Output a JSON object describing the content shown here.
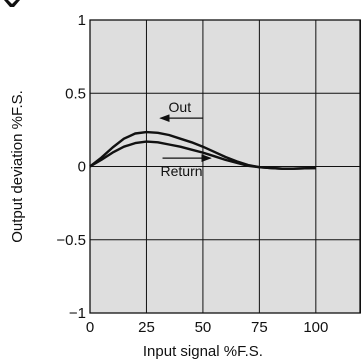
{
  "chart_data": {
    "type": "line",
    "xlabel": "Input signal  %F.S.",
    "ylabel": "Output deviation  %F.S.",
    "xlim": [
      0,
      120
    ],
    "ylim": [
      -1,
      1
    ],
    "grid": true,
    "x_ticks": [
      0,
      25,
      50,
      75,
      100
    ],
    "x_tick_labels": [
      "0",
      "25",
      "50",
      "75",
      "100"
    ],
    "y_ticks": [
      -1,
      -0.5,
      0,
      0.5,
      1
    ],
    "y_tick_labels": [
      "−1",
      "−0.5",
      "0",
      "0.5",
      "1"
    ],
    "series": [
      {
        "name": "Out",
        "x": [
          0,
          5,
          10,
          15,
          20,
          25,
          30,
          35,
          40,
          45,
          50,
          55,
          60,
          65,
          70,
          75,
          80,
          85,
          90,
          95,
          100
        ],
        "y": [
          0,
          0.06,
          0.13,
          0.19,
          0.225,
          0.235,
          0.23,
          0.215,
          0.19,
          0.165,
          0.135,
          0.1,
          0.065,
          0.035,
          0.01,
          -0.005,
          -0.01,
          -0.015,
          -0.015,
          -0.012,
          -0.01
        ]
      },
      {
        "name": "Return",
        "x": [
          0,
          5,
          10,
          15,
          20,
          25,
          30,
          35,
          40,
          45,
          50,
          55,
          60,
          65,
          70,
          75,
          80,
          85,
          90,
          95,
          100
        ],
        "y": [
          0,
          0.045,
          0.095,
          0.135,
          0.16,
          0.17,
          0.165,
          0.15,
          0.135,
          0.115,
          0.095,
          0.07,
          0.045,
          0.025,
          0.005,
          -0.005,
          -0.01,
          -0.015,
          -0.015,
          -0.012,
          -0.01
        ]
      }
    ],
    "annotations": [
      {
        "text": "Out",
        "x": 33,
        "y": 0.33,
        "arrow": "left"
      },
      {
        "text": "Return",
        "x": 33,
        "y": 0.03,
        "arrow": "right"
      }
    ]
  }
}
